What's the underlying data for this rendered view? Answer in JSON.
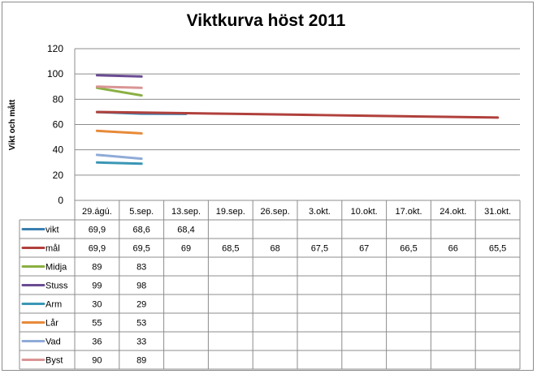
{
  "chart_data": {
    "type": "line",
    "title": "Viktkurva höst 2011",
    "ylabel": "Vikt och mått",
    "xlabel": "",
    "ylim": [
      0,
      120
    ],
    "yticks": [
      0,
      20,
      40,
      60,
      80,
      100,
      120
    ],
    "grid": true,
    "legend": "data-table",
    "categories": [
      "29.ágú.",
      "5.sep.",
      "13.sep.",
      "19.sep.",
      "26.sep.",
      "3.okt.",
      "10.okt.",
      "17.okt.",
      "24.okt.",
      "31.okt."
    ],
    "series": [
      {
        "name": "vikt",
        "color": "#3a7fb0",
        "values": [
          69.9,
          68.6,
          68.4,
          null,
          null,
          null,
          null,
          null,
          null,
          null
        ],
        "labels": [
          "69,9",
          "68,6",
          "68,4",
          "",
          "",
          "",
          "",
          "",
          "",
          ""
        ]
      },
      {
        "name": "mål",
        "color": "#b0403c",
        "values": [
          69.9,
          69.5,
          69,
          68.5,
          68,
          67.5,
          67,
          66.5,
          66,
          65.5
        ],
        "labels": [
          "69,9",
          "69,5",
          "69",
          "68,5",
          "68",
          "67,5",
          "67",
          "66,5",
          "66",
          "65,5"
        ]
      },
      {
        "name": "Midja",
        "color": "#8ab043",
        "values": [
          89,
          83,
          null,
          null,
          null,
          null,
          null,
          null,
          null,
          null
        ],
        "labels": [
          "89",
          "83",
          "",
          "",
          "",
          "",
          "",
          "",
          "",
          ""
        ]
      },
      {
        "name": "Stuss",
        "color": "#6a4c93",
        "values": [
          99,
          98,
          null,
          null,
          null,
          null,
          null,
          null,
          null,
          null
        ],
        "labels": [
          "99",
          "98",
          "",
          "",
          "",
          "",
          "",
          "",
          "",
          ""
        ]
      },
      {
        "name": "Arm",
        "color": "#3a97b5",
        "values": [
          30,
          29,
          null,
          null,
          null,
          null,
          null,
          null,
          null,
          null
        ],
        "labels": [
          "30",
          "29",
          "",
          "",
          "",
          "",
          "",
          "",
          "",
          ""
        ]
      },
      {
        "name": "Lår",
        "color": "#e88a3a",
        "values": [
          55,
          53,
          null,
          null,
          null,
          null,
          null,
          null,
          null,
          null
        ],
        "labels": [
          "55",
          "53",
          "",
          "",
          "",
          "",
          "",
          "",
          "",
          ""
        ]
      },
      {
        "name": "Vad",
        "color": "#8fabd8",
        "values": [
          36,
          33,
          null,
          null,
          null,
          null,
          null,
          null,
          null,
          null
        ],
        "labels": [
          "36",
          "33",
          "",
          "",
          "",
          "",
          "",
          "",
          "",
          ""
        ]
      },
      {
        "name": "Byst",
        "color": "#d99594",
        "values": [
          90,
          89,
          null,
          null,
          null,
          null,
          null,
          null,
          null,
          null
        ],
        "labels": [
          "90",
          "89",
          "",
          "",
          "",
          "",
          "",
          "",
          "",
          ""
        ]
      }
    ]
  }
}
